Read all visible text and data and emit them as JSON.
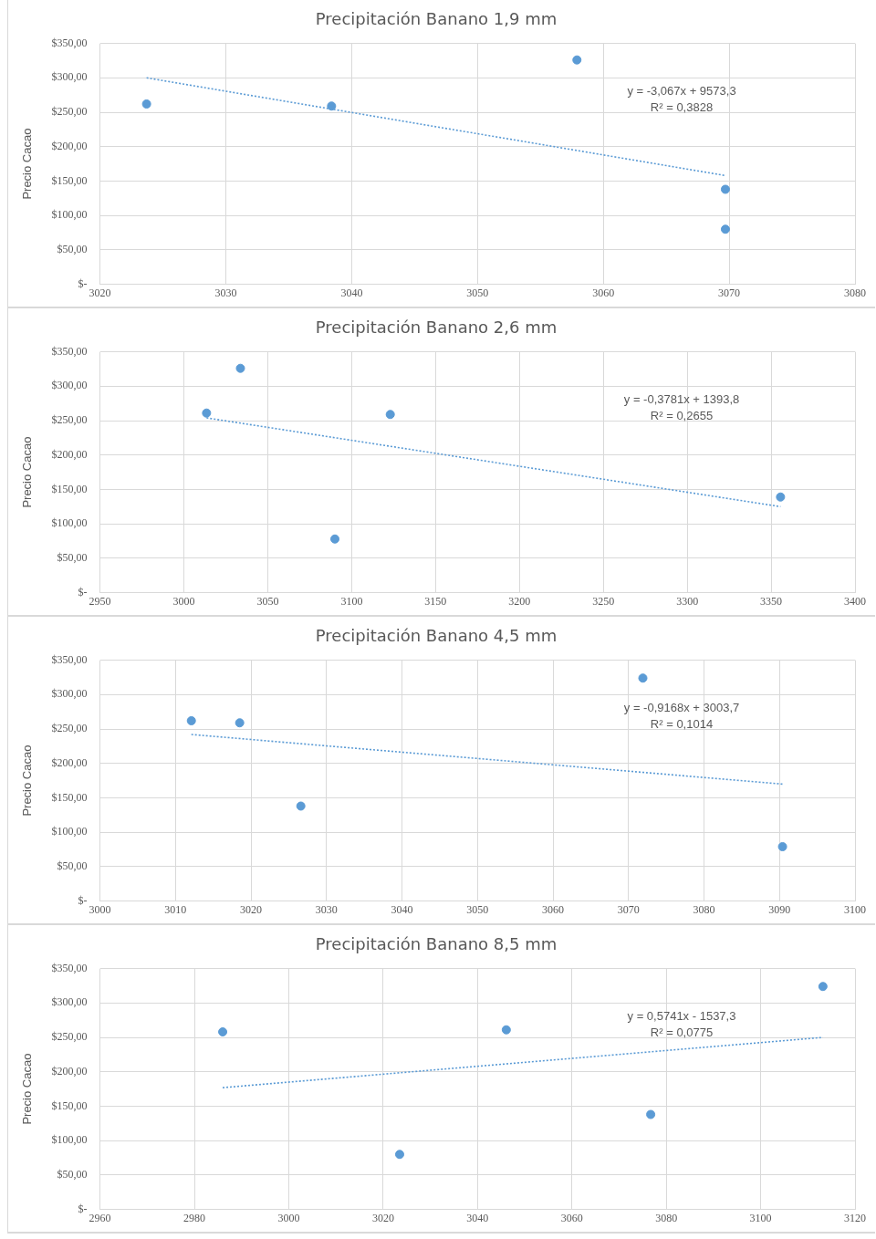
{
  "chart_data": [
    {
      "type": "scatter",
      "title": "Precipitación Banano 1,9 mm",
      "ylabel": "Precio Cacao",
      "xlim": [
        3020,
        3080
      ],
      "xticks": [
        3020,
        3030,
        3040,
        3050,
        3060,
        3070,
        3080
      ],
      "ylim": [
        0,
        350
      ],
      "yticks": [
        {
          "value": 0,
          "label": "$-"
        },
        {
          "value": 50,
          "label": "$50,00"
        },
        {
          "value": 100,
          "label": "$100,00"
        },
        {
          "value": 150,
          "label": "$150,00"
        },
        {
          "value": 200,
          "label": "$200,00"
        },
        {
          "value": 250,
          "label": "$250,00"
        },
        {
          "value": 300,
          "label": "$300,00"
        },
        {
          "value": 350,
          "label": "$350,00"
        }
      ],
      "grid": true,
      "series": [
        {
          "type": "scatter",
          "marker": "circle",
          "color": "#5b9bd5",
          "x": [
            3023.7,
            3038.4,
            3057.9,
            3069.7,
            3069.7
          ],
          "values": [
            262,
            259,
            326,
            138,
            80
          ]
        },
        {
          "type": "line",
          "marker": "none",
          "color": "#5b9bd5",
          "line_style": "dotted",
          "x": [
            3023.7,
            3069.7
          ],
          "values": [
            300,
            158
          ]
        }
      ],
      "annotations": [
        "y = -3,067x + 9573,3",
        "R² = 0,3828"
      ]
    },
    {
      "type": "scatter",
      "title": "Precipitación Banano 2,6 mm",
      "ylabel": "Precio Cacao",
      "xlim": [
        2950,
        3400
      ],
      "xticks": [
        2950,
        3000,
        3050,
        3100,
        3150,
        3200,
        3250,
        3300,
        3350,
        3400
      ],
      "ylim": [
        0,
        350
      ],
      "yticks": [
        {
          "value": 0,
          "label": "$-"
        },
        {
          "value": 50,
          "label": "$50,00"
        },
        {
          "value": 100,
          "label": "$100,00"
        },
        {
          "value": 150,
          "label": "$150,00"
        },
        {
          "value": 200,
          "label": "$200,00"
        },
        {
          "value": 250,
          "label": "$250,00"
        },
        {
          "value": 300,
          "label": "$300,00"
        },
        {
          "value": 350,
          "label": "$350,00"
        }
      ],
      "grid": true,
      "series": [
        {
          "type": "scatter",
          "marker": "circle",
          "color": "#5b9bd5",
          "x": [
            3013.5,
            3033.7,
            3090,
            3123,
            3355.6
          ],
          "values": [
            261,
            326,
            78,
            259,
            139
          ]
        },
        {
          "type": "line",
          "marker": "none",
          "color": "#5b9bd5",
          "line_style": "dotted",
          "x": [
            3013.5,
            3355.6
          ],
          "values": [
            254,
            125
          ]
        }
      ],
      "annotations": [
        "y = -0,3781x + 1393,8",
        "R² = 0,2655"
      ]
    },
    {
      "type": "scatter",
      "title": "Precipitación Banano 4,5 mm",
      "ylabel": "Precio Cacao",
      "xlim": [
        3000,
        3100
      ],
      "xticks": [
        3000,
        3010,
        3020,
        3030,
        3040,
        3050,
        3060,
        3070,
        3080,
        3090,
        3100
      ],
      "ylim": [
        0,
        350
      ],
      "yticks": [
        {
          "value": 0,
          "label": "$-"
        },
        {
          "value": 50,
          "label": "$50,00"
        },
        {
          "value": 100,
          "label": "$100,00"
        },
        {
          "value": 150,
          "label": "$150,00"
        },
        {
          "value": 200,
          "label": "$200,00"
        },
        {
          "value": 250,
          "label": "$250,00"
        },
        {
          "value": 300,
          "label": "$300,00"
        },
        {
          "value": 350,
          "label": "$350,00"
        }
      ],
      "grid": true,
      "series": [
        {
          "type": "scatter",
          "marker": "circle",
          "color": "#5b9bd5",
          "x": [
            3012.1,
            3018.5,
            3026.6,
            3071.9,
            3090.4
          ],
          "values": [
            262,
            259,
            138,
            324,
            79
          ]
        },
        {
          "type": "line",
          "marker": "none",
          "color": "#5b9bd5",
          "line_style": "dotted",
          "x": [
            3012.1,
            3090.4
          ],
          "values": [
            242,
            170
          ]
        }
      ],
      "annotations": [
        "y = -0,9168x + 3003,7",
        "R² = 0,1014"
      ]
    },
    {
      "type": "scatter",
      "title": "Precipitación Banano 8,5 mm",
      "ylabel": "Precio Cacao",
      "xlim": [
        2960,
        3120
      ],
      "xticks": [
        2960,
        2980,
        3000,
        3020,
        3040,
        3060,
        3080,
        3100,
        3120
      ],
      "ylim": [
        0,
        350
      ],
      "yticks": [
        {
          "value": 0,
          "label": "$-"
        },
        {
          "value": 50,
          "label": "$50,00"
        },
        {
          "value": 100,
          "label": "$100,00"
        },
        {
          "value": 150,
          "label": "$150,00"
        },
        {
          "value": 200,
          "label": "$200,00"
        },
        {
          "value": 250,
          "label": "$250,00"
        },
        {
          "value": 300,
          "label": "$300,00"
        },
        {
          "value": 350,
          "label": "$350,00"
        }
      ],
      "grid": true,
      "series": [
        {
          "type": "scatter",
          "marker": "circle",
          "color": "#5b9bd5",
          "x": [
            2986,
            3023.5,
            3046.1,
            3076.7,
            3113.2
          ],
          "values": [
            258,
            80,
            261,
            138,
            324
          ]
        },
        {
          "type": "line",
          "marker": "none",
          "color": "#5b9bd5",
          "line_style": "dotted",
          "x": [
            2986,
            3113.2
          ],
          "values": [
            177,
            250
          ]
        }
      ],
      "annotations": [
        "y = 0,5741x - 1537,3",
        "R² = 0,0775"
      ]
    }
  ]
}
